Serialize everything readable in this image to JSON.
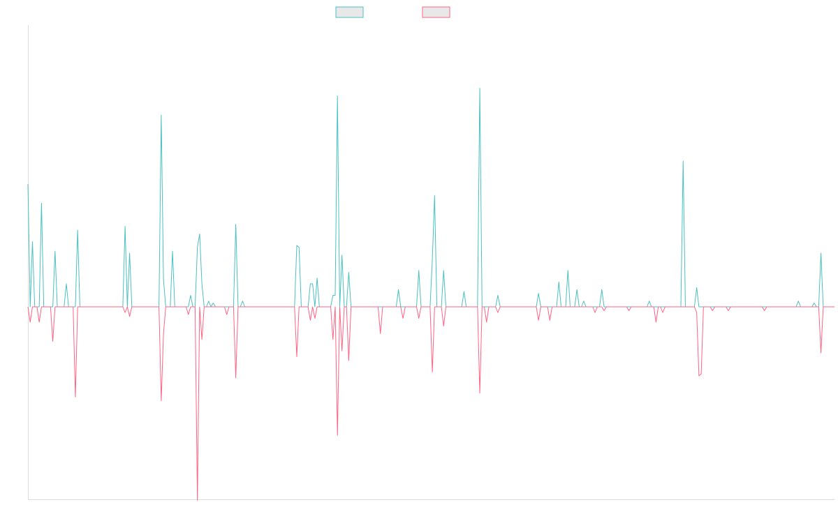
{
  "chart_data": {
    "type": "line",
    "title": "",
    "xlabel": "",
    "ylabel": "",
    "grid": false,
    "legend": "top-center",
    "x_count": 358,
    "ylim": [
      -1,
      1
    ],
    "series": [
      {
        "name": "",
        "color": "#4bc0c0",
        "baseline": 0,
        "events": [
          [
            0,
            0.64
          ],
          [
            2,
            0.34
          ],
          [
            6,
            0.54
          ],
          [
            12,
            0.29
          ],
          [
            17,
            0.12
          ],
          [
            22,
            0.4
          ],
          [
            43,
            0.42
          ],
          [
            45,
            0.28
          ],
          [
            59,
            1.0
          ],
          [
            60,
            0.14
          ],
          [
            64,
            0.29
          ],
          [
            72,
            0.06
          ],
          [
            75,
            0.31
          ],
          [
            76,
            0.38
          ],
          [
            77,
            0.12
          ],
          [
            80,
            0.03
          ],
          [
            82,
            0.02
          ],
          [
            92,
            0.43
          ],
          [
            95,
            0.03
          ],
          [
            119,
            0.32
          ],
          [
            120,
            0.31
          ],
          [
            125,
            0.12
          ],
          [
            126,
            0.12
          ],
          [
            128,
            0.15
          ],
          [
            135,
            0.06
          ],
          [
            136,
            0.06
          ],
          [
            137,
            1.1
          ],
          [
            139,
            0.27
          ],
          [
            142,
            0.18
          ],
          [
            164,
            0.09
          ],
          [
            173,
            0.19
          ],
          [
            179,
            0.25
          ],
          [
            180,
            0.58
          ],
          [
            184,
            0.19
          ],
          [
            193,
            0.08
          ],
          [
            200,
            1.14
          ],
          [
            208,
            0.06
          ],
          [
            226,
            0.07
          ],
          [
            235,
            0.13
          ],
          [
            239,
            0.19
          ],
          [
            243,
            0.09
          ],
          [
            246,
            0.03
          ],
          [
            254,
            0.09
          ],
          [
            275,
            0.03
          ],
          [
            290,
            0.76
          ],
          [
            296,
            0.1
          ],
          [
            341,
            0.03
          ],
          [
            348,
            0.02
          ],
          [
            351,
            0.28
          ]
        ]
      },
      {
        "name": "",
        "color": "#ff6384",
        "baseline": 0,
        "events": [
          [
            1,
            -0.08
          ],
          [
            5,
            -0.08
          ],
          [
            11,
            -0.18
          ],
          [
            21,
            -0.47
          ],
          [
            43,
            -0.03
          ],
          [
            45,
            -0.05
          ],
          [
            59,
            -0.49
          ],
          [
            60,
            -0.14
          ],
          [
            71,
            -0.04
          ],
          [
            75,
            -1.01
          ],
          [
            77,
            -0.17
          ],
          [
            88,
            -0.04
          ],
          [
            92,
            -0.37
          ],
          [
            119,
            -0.26
          ],
          [
            125,
            -0.07
          ],
          [
            127,
            -0.06
          ],
          [
            135,
            -0.17
          ],
          [
            137,
            -0.67
          ],
          [
            139,
            -0.23
          ],
          [
            142,
            -0.28
          ],
          [
            156,
            -0.14
          ],
          [
            166,
            -0.06
          ],
          [
            173,
            -0.06
          ],
          [
            179,
            -0.34
          ],
          [
            184,
            -0.1
          ],
          [
            200,
            -0.45
          ],
          [
            203,
            -0.08
          ],
          [
            208,
            -0.03
          ],
          [
            226,
            -0.07
          ],
          [
            231,
            -0.07
          ],
          [
            251,
            -0.03
          ],
          [
            255,
            -0.02
          ],
          [
            266,
            -0.02
          ],
          [
            278,
            -0.08
          ],
          [
            281,
            -0.03
          ],
          [
            296,
            -0.03
          ],
          [
            297,
            -0.36
          ],
          [
            298,
            -0.35
          ],
          [
            303,
            -0.02
          ],
          [
            310,
            -0.02
          ],
          [
            326,
            -0.02
          ],
          [
            351,
            -0.24
          ]
        ]
      }
    ]
  }
}
